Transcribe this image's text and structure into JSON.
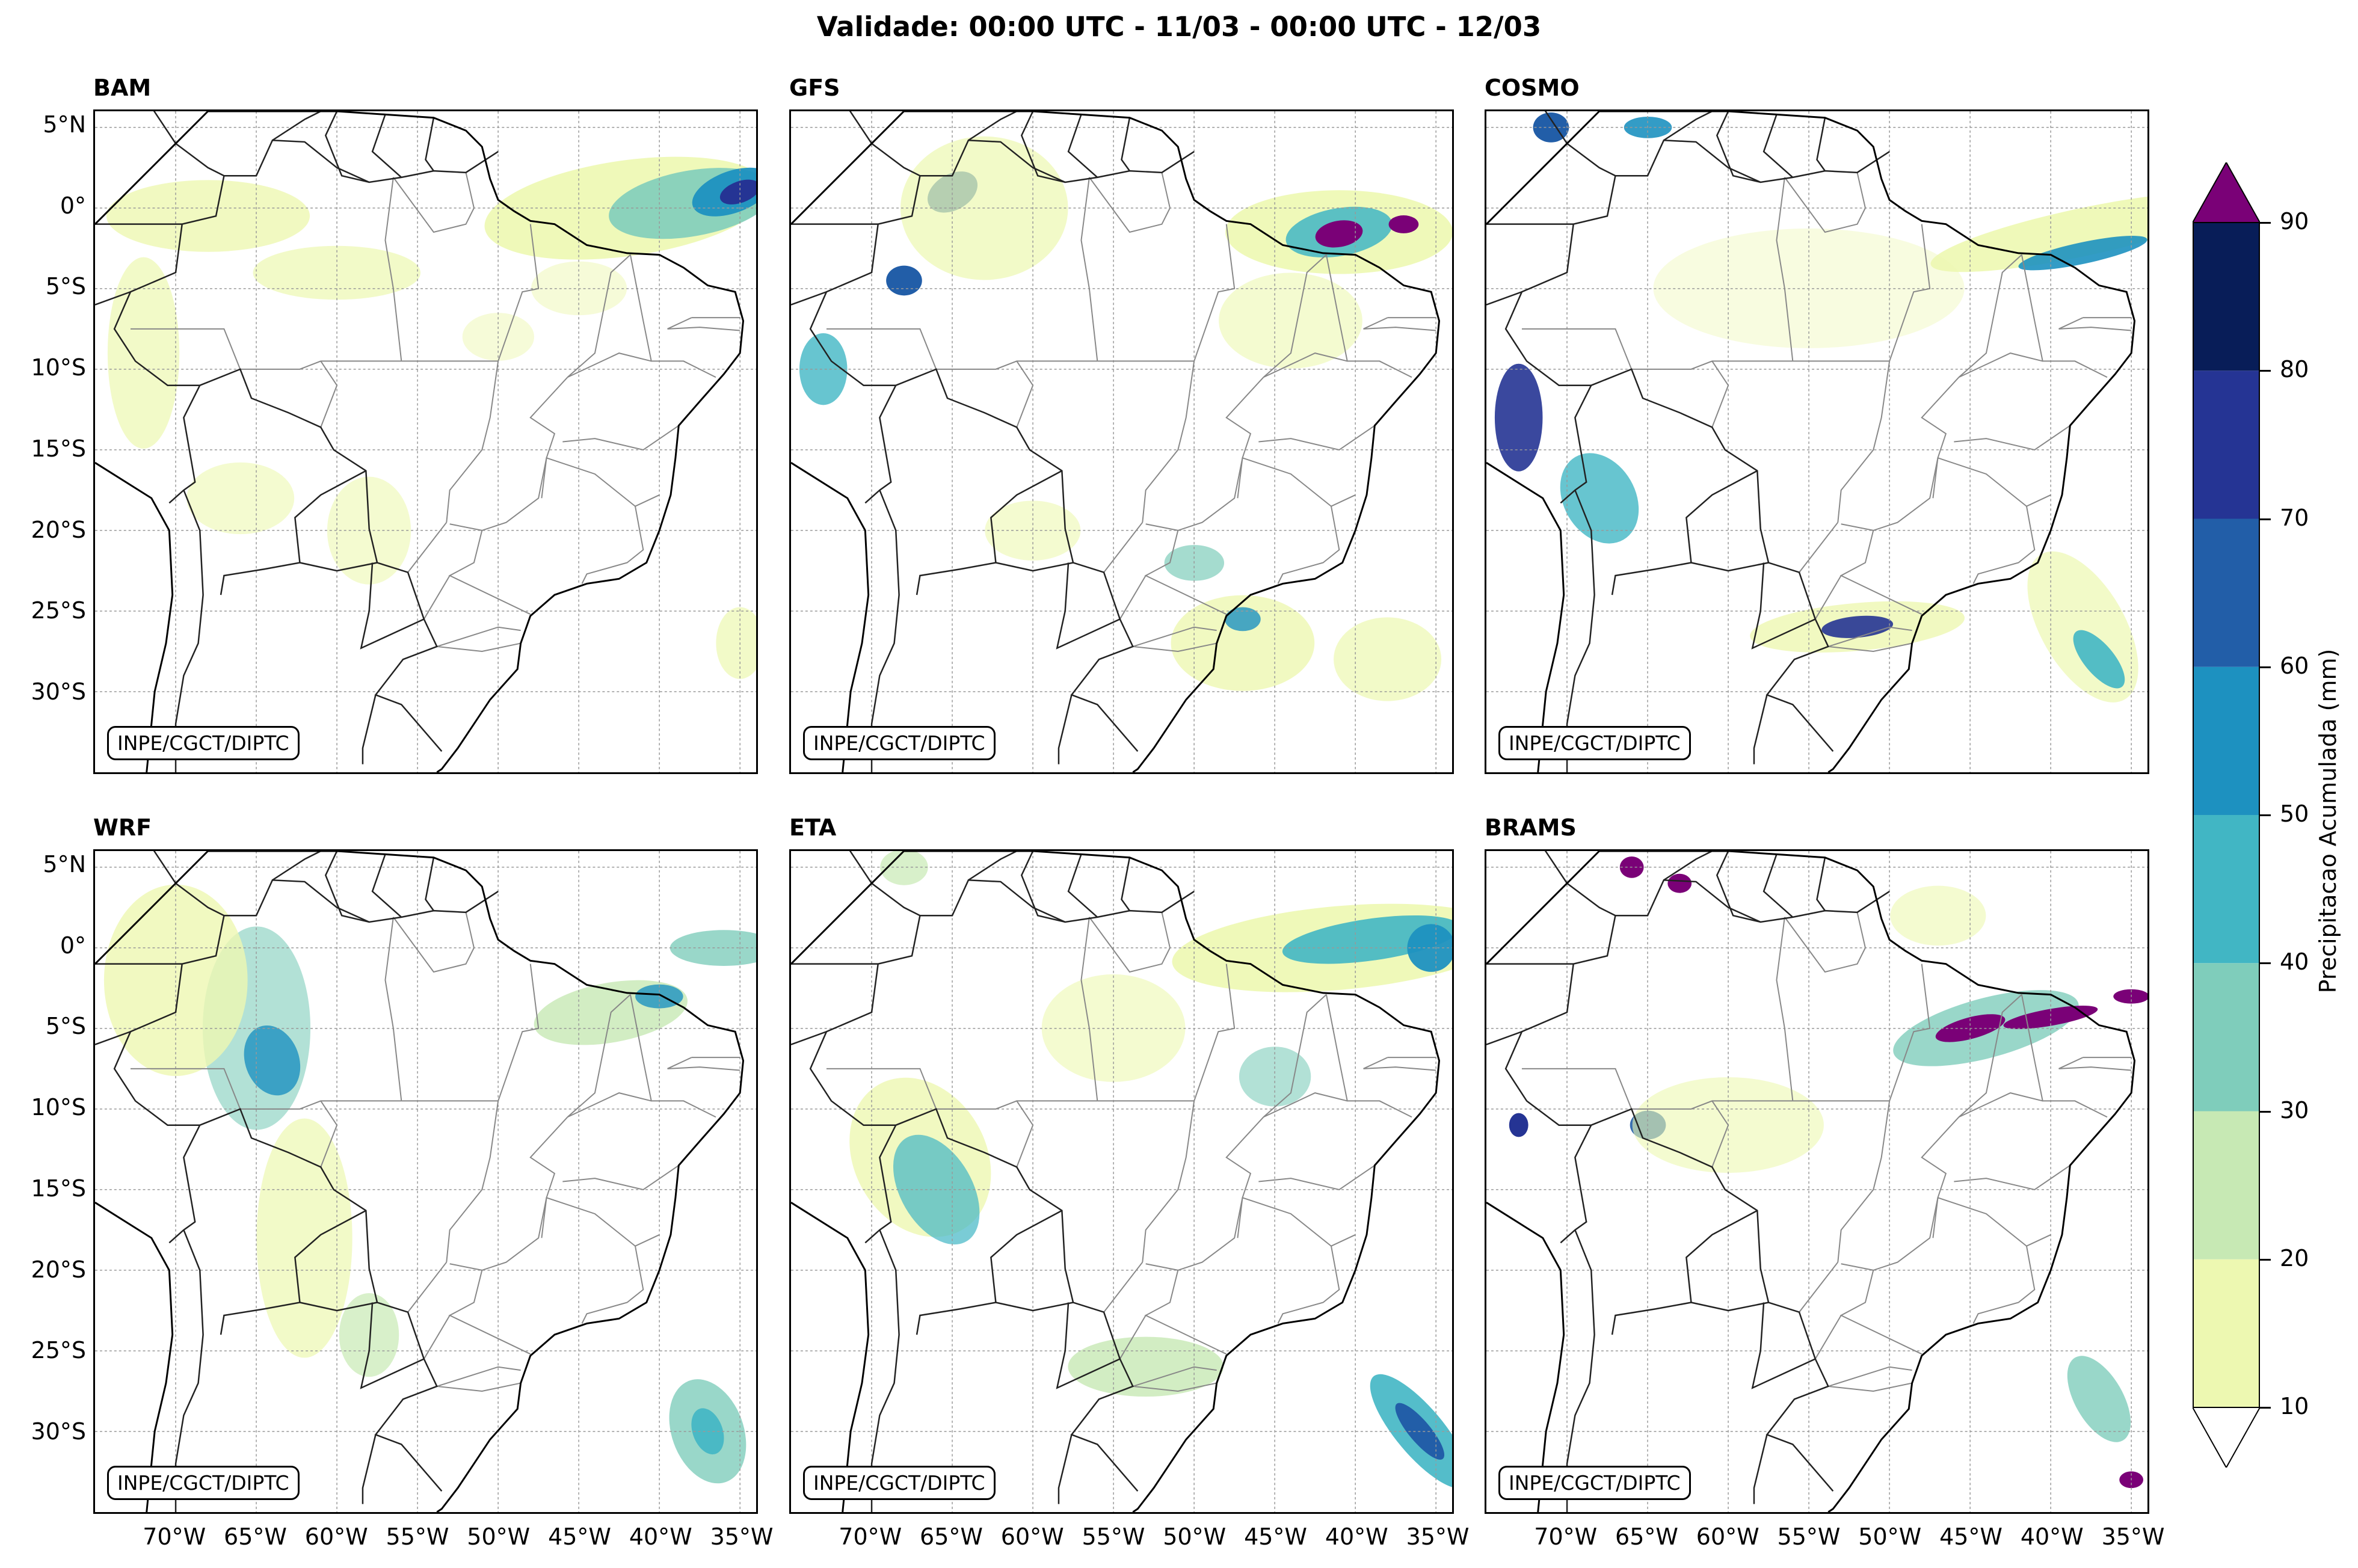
{
  "title": "Validade: 00:00 UTC - 11/03 - 00:00 UTC - 12/03",
  "credit": "INPE/CGCT/DIPTC",
  "panels": [
    {
      "name": "BAM"
    },
    {
      "name": "GFS"
    },
    {
      "name": "COSMO"
    },
    {
      "name": "WRF"
    },
    {
      "name": "ETA"
    },
    {
      "name": "BRAMS"
    }
  ],
  "lat_ticks": [
    "5°N",
    "0°",
    "5°S",
    "10°S",
    "15°S",
    "20°S",
    "25°S",
    "30°S"
  ],
  "lon_ticks": [
    "70°W",
    "65°W",
    "60°W",
    "55°W",
    "50°W",
    "45°W",
    "40°W",
    "35°W"
  ],
  "map_extent": {
    "lon": [
      -75,
      -34
    ],
    "lat": [
      -35,
      6
    ]
  },
  "colorbar": {
    "label": "Precipitacao Acumulada (mm)",
    "levels": [
      "10",
      "20",
      "30",
      "40",
      "50",
      "60",
      "70",
      "80",
      "90"
    ],
    "colors": [
      "#edf8b1",
      "#c7e9b4",
      "#7fcdbb",
      "#41b6c4",
      "#1d91c0",
      "#225ea8",
      "#253494",
      "#081d58"
    ],
    "over_color": "#7a0177",
    "under_color": "#ffffff"
  }
}
